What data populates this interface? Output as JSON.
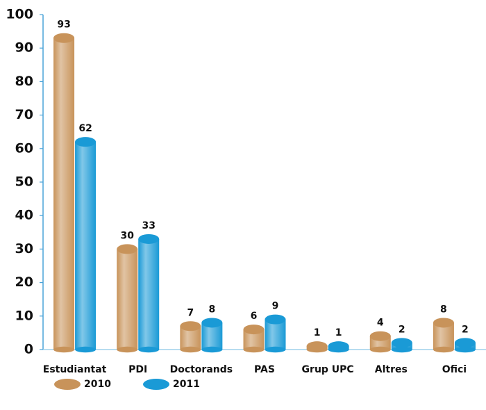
{
  "chart_data": {
    "type": "bar",
    "categories": [
      "Estudiantat",
      "PDI",
      "Doctorands",
      "PAS",
      "Grup UPC",
      "Altres",
      "Ofici"
    ],
    "series": [
      {
        "name": "2010",
        "color": "#c8935a",
        "values": [
          93,
          30,
          7,
          6,
          1,
          4,
          8
        ]
      },
      {
        "name": "2011",
        "color": "#1a9ad6",
        "values": [
          62,
          33,
          8,
          9,
          1,
          2,
          2
        ]
      }
    ],
    "ylim": [
      0,
      100
    ],
    "yticks": [
      0,
      10,
      20,
      30,
      40,
      50,
      60,
      70,
      80,
      90,
      100
    ]
  }
}
